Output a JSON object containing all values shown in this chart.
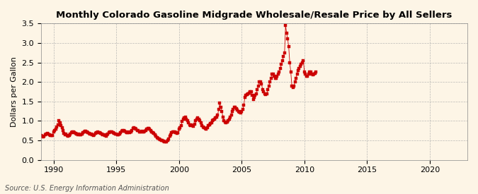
{
  "title": "Monthly Colorado Gasoline Midgrade Wholesale/Resale Price by All Sellers",
  "ylabel": "Dollars per Gallon",
  "source": "Source: U.S. Energy Information Administration",
  "bg_color": "#fdf5e6",
  "marker_color": "#cc0000",
  "grid_color": "#aaaaaa",
  "xlim": [
    1989,
    2023
  ],
  "ylim": [
    0.0,
    3.5
  ],
  "xticks": [
    1990,
    1995,
    2000,
    2005,
    2010,
    2015,
    2020
  ],
  "yticks": [
    0.0,
    0.5,
    1.0,
    1.5,
    2.0,
    2.5,
    3.0,
    3.5
  ],
  "dates": [
    1989.0,
    1989.083,
    1989.167,
    1989.25,
    1989.333,
    1989.417,
    1989.5,
    1989.583,
    1989.667,
    1989.75,
    1989.833,
    1989.917,
    1990.0,
    1990.083,
    1990.167,
    1990.25,
    1990.333,
    1990.417,
    1990.5,
    1990.583,
    1990.667,
    1990.75,
    1990.833,
    1990.917,
    1991.0,
    1991.083,
    1991.167,
    1991.25,
    1991.333,
    1991.417,
    1991.5,
    1991.583,
    1991.667,
    1991.75,
    1991.833,
    1991.917,
    1992.0,
    1992.083,
    1992.167,
    1992.25,
    1992.333,
    1992.417,
    1992.5,
    1992.583,
    1992.667,
    1992.75,
    1992.833,
    1992.917,
    1993.0,
    1993.083,
    1993.167,
    1993.25,
    1993.333,
    1993.417,
    1993.5,
    1993.583,
    1993.667,
    1993.75,
    1993.833,
    1993.917,
    1994.0,
    1994.083,
    1994.167,
    1994.25,
    1994.333,
    1994.417,
    1994.5,
    1994.583,
    1994.667,
    1994.75,
    1994.833,
    1994.917,
    1995.0,
    1995.083,
    1995.167,
    1995.25,
    1995.333,
    1995.417,
    1995.5,
    1995.583,
    1995.667,
    1995.75,
    1995.833,
    1995.917,
    1996.0,
    1996.083,
    1996.167,
    1996.25,
    1996.333,
    1996.417,
    1996.5,
    1996.583,
    1996.667,
    1996.75,
    1996.833,
    1996.917,
    1997.0,
    1997.083,
    1997.167,
    1997.25,
    1997.333,
    1997.417,
    1997.5,
    1997.583,
    1997.667,
    1997.75,
    1997.833,
    1997.917,
    1998.0,
    1998.083,
    1998.167,
    1998.25,
    1998.333,
    1998.417,
    1998.5,
    1998.583,
    1998.667,
    1998.75,
    1998.833,
    1998.917,
    1999.0,
    1999.083,
    1999.167,
    1999.25,
    1999.333,
    1999.417,
    1999.5,
    1999.583,
    1999.667,
    1999.75,
    1999.833,
    1999.917,
    2000.0,
    2000.083,
    2000.167,
    2000.25,
    2000.333,
    2000.417,
    2000.5,
    2000.583,
    2000.667,
    2000.75,
    2000.833,
    2000.917,
    2001.0,
    2001.083,
    2001.167,
    2001.25,
    2001.333,
    2001.417,
    2001.5,
    2001.583,
    2001.667,
    2001.75,
    2001.833,
    2001.917,
    2002.0,
    2002.083,
    2002.167,
    2002.25,
    2002.333,
    2002.417,
    2002.5,
    2002.583,
    2002.667,
    2002.75,
    2002.833,
    2002.917,
    2003.0,
    2003.083,
    2003.167,
    2003.25,
    2003.333,
    2003.417,
    2003.5,
    2003.583,
    2003.667,
    2003.75,
    2003.833,
    2003.917,
    2004.0,
    2004.083,
    2004.167,
    2004.25,
    2004.333,
    2004.417,
    2004.5,
    2004.583,
    2004.667,
    2004.75,
    2004.833,
    2004.917,
    2005.0,
    2005.083,
    2005.167,
    2005.25,
    2005.333,
    2005.417,
    2005.5,
    2005.583,
    2005.667,
    2005.75,
    2005.833,
    2005.917,
    2006.0,
    2006.083,
    2006.167,
    2006.25,
    2006.333,
    2006.417,
    2006.5,
    2006.583,
    2006.667,
    2006.75,
    2006.833,
    2006.917,
    2007.0,
    2007.083,
    2007.167,
    2007.25,
    2007.333,
    2007.417,
    2007.5,
    2007.583,
    2007.667,
    2007.75,
    2007.833,
    2007.917,
    2008.0,
    2008.083,
    2008.167,
    2008.25,
    2008.333,
    2008.417,
    2008.5,
    2008.583,
    2008.667,
    2008.75,
    2008.833,
    2008.917,
    2009.0,
    2009.083,
    2009.167,
    2009.25,
    2009.333,
    2009.417,
    2009.5,
    2009.583,
    2009.667,
    2009.75,
    2009.833,
    2009.917,
    2010.0,
    2010.083,
    2010.167,
    2010.25,
    2010.333,
    2010.417,
    2010.5,
    2010.583,
    2010.667,
    2010.75,
    2010.833,
    2010.917
  ],
  "values": [
    0.62,
    0.6,
    0.59,
    0.61,
    0.65,
    0.67,
    0.68,
    0.66,
    0.65,
    0.63,
    0.62,
    0.63,
    0.72,
    0.75,
    0.78,
    0.85,
    0.9,
    1.0,
    0.95,
    0.88,
    0.82,
    0.75,
    0.68,
    0.65,
    0.66,
    0.63,
    0.61,
    0.63,
    0.67,
    0.7,
    0.72,
    0.71,
    0.7,
    0.68,
    0.66,
    0.65,
    0.67,
    0.65,
    0.64,
    0.66,
    0.7,
    0.72,
    0.74,
    0.73,
    0.72,
    0.7,
    0.68,
    0.67,
    0.66,
    0.64,
    0.63,
    0.65,
    0.68,
    0.7,
    0.71,
    0.7,
    0.69,
    0.68,
    0.66,
    0.65,
    0.64,
    0.62,
    0.61,
    0.64,
    0.67,
    0.7,
    0.72,
    0.72,
    0.71,
    0.7,
    0.68,
    0.67,
    0.67,
    0.65,
    0.65,
    0.67,
    0.7,
    0.73,
    0.75,
    0.75,
    0.74,
    0.72,
    0.7,
    0.7,
    0.72,
    0.7,
    0.72,
    0.76,
    0.8,
    0.82,
    0.8,
    0.78,
    0.76,
    0.75,
    0.72,
    0.72,
    0.73,
    0.72,
    0.71,
    0.73,
    0.76,
    0.79,
    0.8,
    0.8,
    0.78,
    0.75,
    0.72,
    0.7,
    0.68,
    0.65,
    0.6,
    0.57,
    0.55,
    0.53,
    0.52,
    0.5,
    0.49,
    0.48,
    0.47,
    0.47,
    0.47,
    0.49,
    0.53,
    0.6,
    0.65,
    0.7,
    0.72,
    0.72,
    0.71,
    0.7,
    0.68,
    0.7,
    0.78,
    0.82,
    0.88,
    0.98,
    1.05,
    1.08,
    1.1,
    1.05,
    1.0,
    0.95,
    0.9,
    0.88,
    0.9,
    0.88,
    0.86,
    0.92,
    1.0,
    1.05,
    1.08,
    1.05,
    1.0,
    0.95,
    0.88,
    0.85,
    0.82,
    0.8,
    0.79,
    0.83,
    0.88,
    0.9,
    0.93,
    0.96,
    1.0,
    1.02,
    1.05,
    1.08,
    1.1,
    1.15,
    1.3,
    1.45,
    1.35,
    1.25,
    1.1,
    1.0,
    0.97,
    0.96,
    0.97,
    1.0,
    1.05,
    1.1,
    1.15,
    1.25,
    1.3,
    1.35,
    1.35,
    1.32,
    1.28,
    1.25,
    1.22,
    1.2,
    1.25,
    1.3,
    1.4,
    1.6,
    1.65,
    1.68,
    1.7,
    1.72,
    1.75,
    1.75,
    1.65,
    1.55,
    1.6,
    1.65,
    1.7,
    1.8,
    1.9,
    2.0,
    2.0,
    1.95,
    1.8,
    1.75,
    1.7,
    1.68,
    1.7,
    1.8,
    1.9,
    2.0,
    2.1,
    2.2,
    2.2,
    2.15,
    2.1,
    2.1,
    2.15,
    2.2,
    2.25,
    2.35,
    2.45,
    2.55,
    2.65,
    2.75,
    3.45,
    3.25,
    3.1,
    2.9,
    2.5,
    2.25,
    1.9,
    1.85,
    1.9,
    2.0,
    2.1,
    2.2,
    2.3,
    2.35,
    2.4,
    2.45,
    2.5,
    2.55,
    2.25,
    2.2,
    2.15,
    2.15,
    2.2,
    2.25,
    2.25,
    2.2,
    2.18,
    2.2,
    2.22,
    2.25
  ]
}
